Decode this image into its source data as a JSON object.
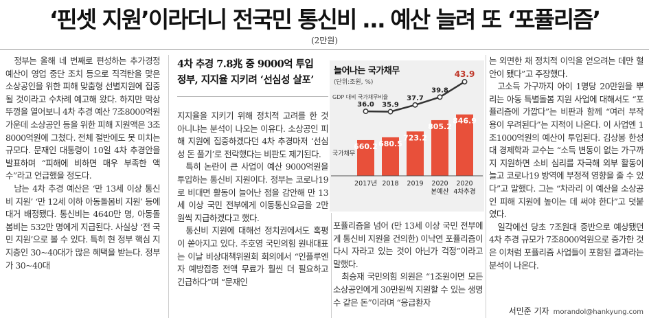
{
  "headline": "‘핀셋 지원’이라더니 전국민 통신비 … 예산 늘려 또 ‘포퓰리즘’",
  "subhead": "(2만원)",
  "col1": [
    "정부는 올해 네 번째로 편성하는 추가경정예산이 영업 중단 조치 등으로 직격탄을 맞은 소상공인을 위한 피해 맞춤형 선별지원에 집중될 것이라고 수차례 예고해 왔다. 하지만 막상 뚜껑을 열어보니 4차 추경 예산 7조8000억원 가운데 소상공인 등을 위한 피해 지원액은 3조8000억원에 그쳤다. 전체 절반에도 못 미치는 규모다. 문재인 대통령이 10일 4차 추경안을 발표하며 “피해에 비하면 매우 부족한 액수”라고 언급했을 정도다.",
    "남는 4차 추경 예산은 ‘만 13세 이상 통신비 지원’ ‘만 12세 이하 아동돌봄비 지원’ 등에 대거 배정됐다. 통신비는 4640만 명, 아동돌봄비는 532만 명에게 지급된다. 사실상 ‘전 국민 지원’으로 볼 수 있다. 특히 현 정부 핵심 지지층인 30~40대가 많은 혜택을 받는다. 정부가 30~40대"
  ],
  "sidebar": {
    "title_line1": "4차 추경 7.8兆 중 9000억 투입",
    "title_line2": "정부, 지지율 지키려 ‘선심성 살포’"
  },
  "col2": [
    "지지율을 지키기 위해 정치적 고려를 한 것 아니냐는 분석이 나오는 이유다. 소상공인 피해 지원에 집중하겠다던 4차 추경마저 ‘선심성 돈 풀기’로 전락했다는 비판도 제기된다.",
    "특히 논란이 큰 사업이 예산 9000억원을 투입하는 통신비 지원이다. 정부는 코로나19로 비대면 활동이 늘어난 점을 감안해 만 13세 이상 국민 전부에게 이동통신요금을 2만원씩 지급하겠다고 했다.",
    "통신비 지원에 대해선 정치권에서도 혹평이 쏟아지고 있다. 주호영 국민의힘 원내대표는 이날 비상대책위원회 회의에서 “인플루엔자 예방접종 전액 무료가 훨씬 더 필요하고 긴급하다”며 “문재인"
  ],
  "col3": [
    "포퓰리즘을 넘어 (만 13세 이상 국민 전부에게 통신비 지원을 건의한) 이낙연 포퓰리즘이 다시 자라고 있는 것이 아닌가 걱정”이라고 말했다.",
    "최승재 국민의힘 의원은 “1조원이면 모든 소상공인에게 30만원씩 지원할 수 있는 생명수 같은 돈”이라며 “응급환자"
  ],
  "col4": [
    "는 외면한 채 정치적 이익을 얻으려는 데만 혈안이 됐다”고 주장했다.",
    "고소득 가구까지 아이 1명당 20만원을 뿌리는 아동 특별돌봄 지원 사업에 대해서도 “포퓰리즘에 가깝다”는 비판과 함께 “여러 부작용이 우려된다”는 지적이 나온다. 이 사업엔 1조1000억원의 예산이 투입된다. 김상봉 한성대 경제학과 교수는 “소득 변동이 없는 가구까지 지원하면 소비 심리를 자극해 외부 활동이 늘고 코로나19 방역에 부정적 영향을 줄 수 있다”고 말했다. 그는 “차라리 이 예산을 소상공인 피해 지원에 높이는 데 써야 한다”고 덧붙였다.",
    "일각에선 당초 7조원대 중반으로 예상됐던 4차 추경 규모가 7조8000억원으로 증가한 것은 이처럼 포퓰리즘 사업들이 포함된 결과라는 분석이 나온다."
  ],
  "byline": {
    "name": "서민준 기자",
    "email": "morandol@hankyung.com"
  },
  "chart_data": {
    "type": "bar",
    "title": "늘어나는 국가채무",
    "unit": "(단위:조원, %)",
    "categories": [
      "2017년",
      "2018",
      "2019",
      "2020",
      "2020"
    ],
    "category_sub": [
      "",
      "",
      "",
      "본예산",
      "4차추경"
    ],
    "series": [
      {
        "name": "국가채무",
        "values": [
          660.2,
          680.5,
          723.2,
          805.2,
          846.9
        ]
      },
      {
        "name": "GDP 대비 국가채무비율",
        "values": [
          36.0,
          35.9,
          37.7,
          39.8,
          43.9
        ]
      }
    ],
    "colors": {
      "bar": "#e8503a",
      "line": "#333333",
      "background": "#f0f0f0"
    }
  }
}
